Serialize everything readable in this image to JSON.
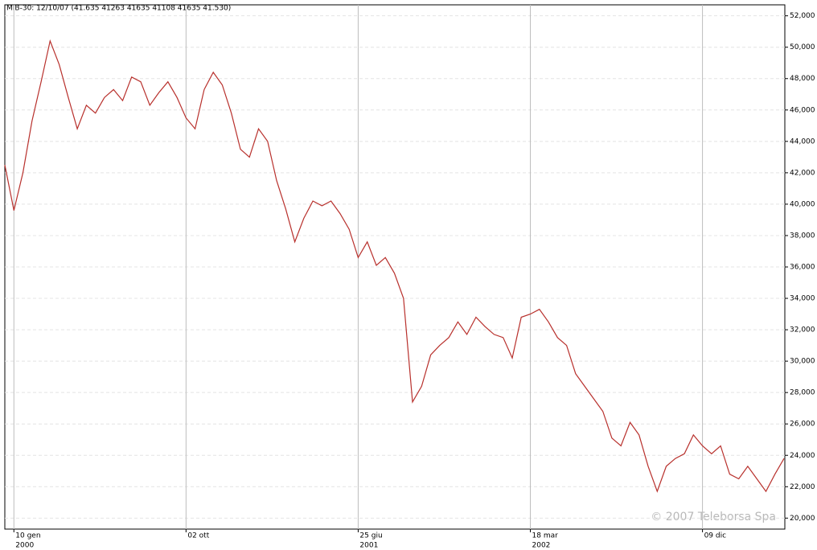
{
  "chart_data": {
    "type": "line",
    "title": "MIB-30: 12/10/07 (41.635  41263  41635  41108  41635  41.530)",
    "watermark": "© 2007 Teleborsa Spa",
    "categories": [
      null,
      "10 gen",
      null,
      null,
      null,
      null,
      null,
      null,
      null,
      null,
      null,
      null,
      null,
      null,
      null,
      null,
      null,
      null,
      null,
      null,
      "02 ott",
      null,
      null,
      null,
      null,
      null,
      null,
      null,
      null,
      null,
      null,
      null,
      null,
      null,
      null,
      null,
      null,
      null,
      null,
      "25 giu",
      null,
      null,
      null,
      null,
      null,
      null,
      null,
      null,
      null,
      null,
      null,
      null,
      null,
      null,
      null,
      null,
      null,
      null,
      "18 mar",
      null,
      null,
      null,
      null,
      null,
      null,
      null,
      null,
      null,
      null,
      null,
      null,
      null,
      null,
      null,
      null,
      null,
      null,
      "09 dic",
      null,
      null,
      null,
      null,
      null,
      null,
      null,
      null,
      null
    ],
    "category_years": [
      null,
      "2000",
      null,
      null,
      null,
      null,
      null,
      null,
      null,
      null,
      null,
      null,
      null,
      null,
      null,
      null,
      null,
      null,
      null,
      null,
      null,
      null,
      null,
      null,
      null,
      null,
      null,
      null,
      null,
      null,
      null,
      null,
      null,
      null,
      null,
      null,
      null,
      null,
      null,
      "2001",
      null,
      null,
      null,
      null,
      null,
      null,
      null,
      null,
      null,
      null,
      null,
      null,
      null,
      null,
      null,
      null,
      null,
      null,
      "2002",
      null,
      null,
      null,
      null,
      null,
      null,
      null,
      null,
      null,
      null,
      null,
      null,
      null,
      null,
      null,
      null,
      null,
      null,
      null,
      null,
      null,
      null,
      null,
      null,
      null,
      null,
      null,
      null,
      null
    ],
    "series": [
      {
        "name": "MIB-30",
        "color": "#b8302c",
        "values": [
          42500,
          39600,
          42000,
          45300,
          47800,
          50400,
          48900,
          46800,
          44800,
          46300,
          45800,
          46800,
          47300,
          46600,
          48100,
          47800,
          46300,
          47100,
          47800,
          46800,
          45500,
          44800,
          47300,
          48400,
          47600,
          45800,
          43500,
          43000,
          44800,
          44000,
          41500,
          39700,
          37600,
          39100,
          40200,
          39900,
          40200,
          39400,
          38400,
          36600,
          37600,
          36100,
          36600,
          35600,
          34000,
          27400,
          28400,
          30400,
          31000,
          31500,
          32500,
          31700,
          32800,
          32200,
          31700,
          31500,
          30200,
          32800,
          33000,
          33300,
          32500,
          31500,
          31000,
          29200,
          28400,
          27600,
          26800,
          25100,
          24600,
          26100,
          25300,
          23300,
          21700,
          23300,
          23800,
          24100,
          25300,
          24600,
          24100,
          24600,
          22800,
          22500,
          23300,
          22500,
          21700,
          22800,
          23800
        ]
      }
    ],
    "ylim": [
      19300,
      52700
    ],
    "yticks": [
      {
        "value": 20000,
        "label": "20,000"
      },
      {
        "value": 22000,
        "label": "22,000"
      },
      {
        "value": 24000,
        "label": "24,000"
      },
      {
        "value": 26000,
        "label": "26,000"
      },
      {
        "value": 28000,
        "label": "28,000"
      },
      {
        "value": 30000,
        "label": "30,000"
      },
      {
        "value": 32000,
        "label": "32,000"
      },
      {
        "value": 34000,
        "label": "34,000"
      },
      {
        "value": 36000,
        "label": "36,000"
      },
      {
        "value": 38000,
        "label": "38,000"
      },
      {
        "value": 40000,
        "label": "40,000"
      },
      {
        "value": 42000,
        "label": "42,000"
      },
      {
        "value": 44000,
        "label": "44,000"
      },
      {
        "value": 46000,
        "label": "46,000"
      },
      {
        "value": 48000,
        "label": "48,000"
      },
      {
        "value": 50000,
        "label": "50,000"
      },
      {
        "value": 52000,
        "label": "52,000"
      }
    ],
    "grid": true
  }
}
